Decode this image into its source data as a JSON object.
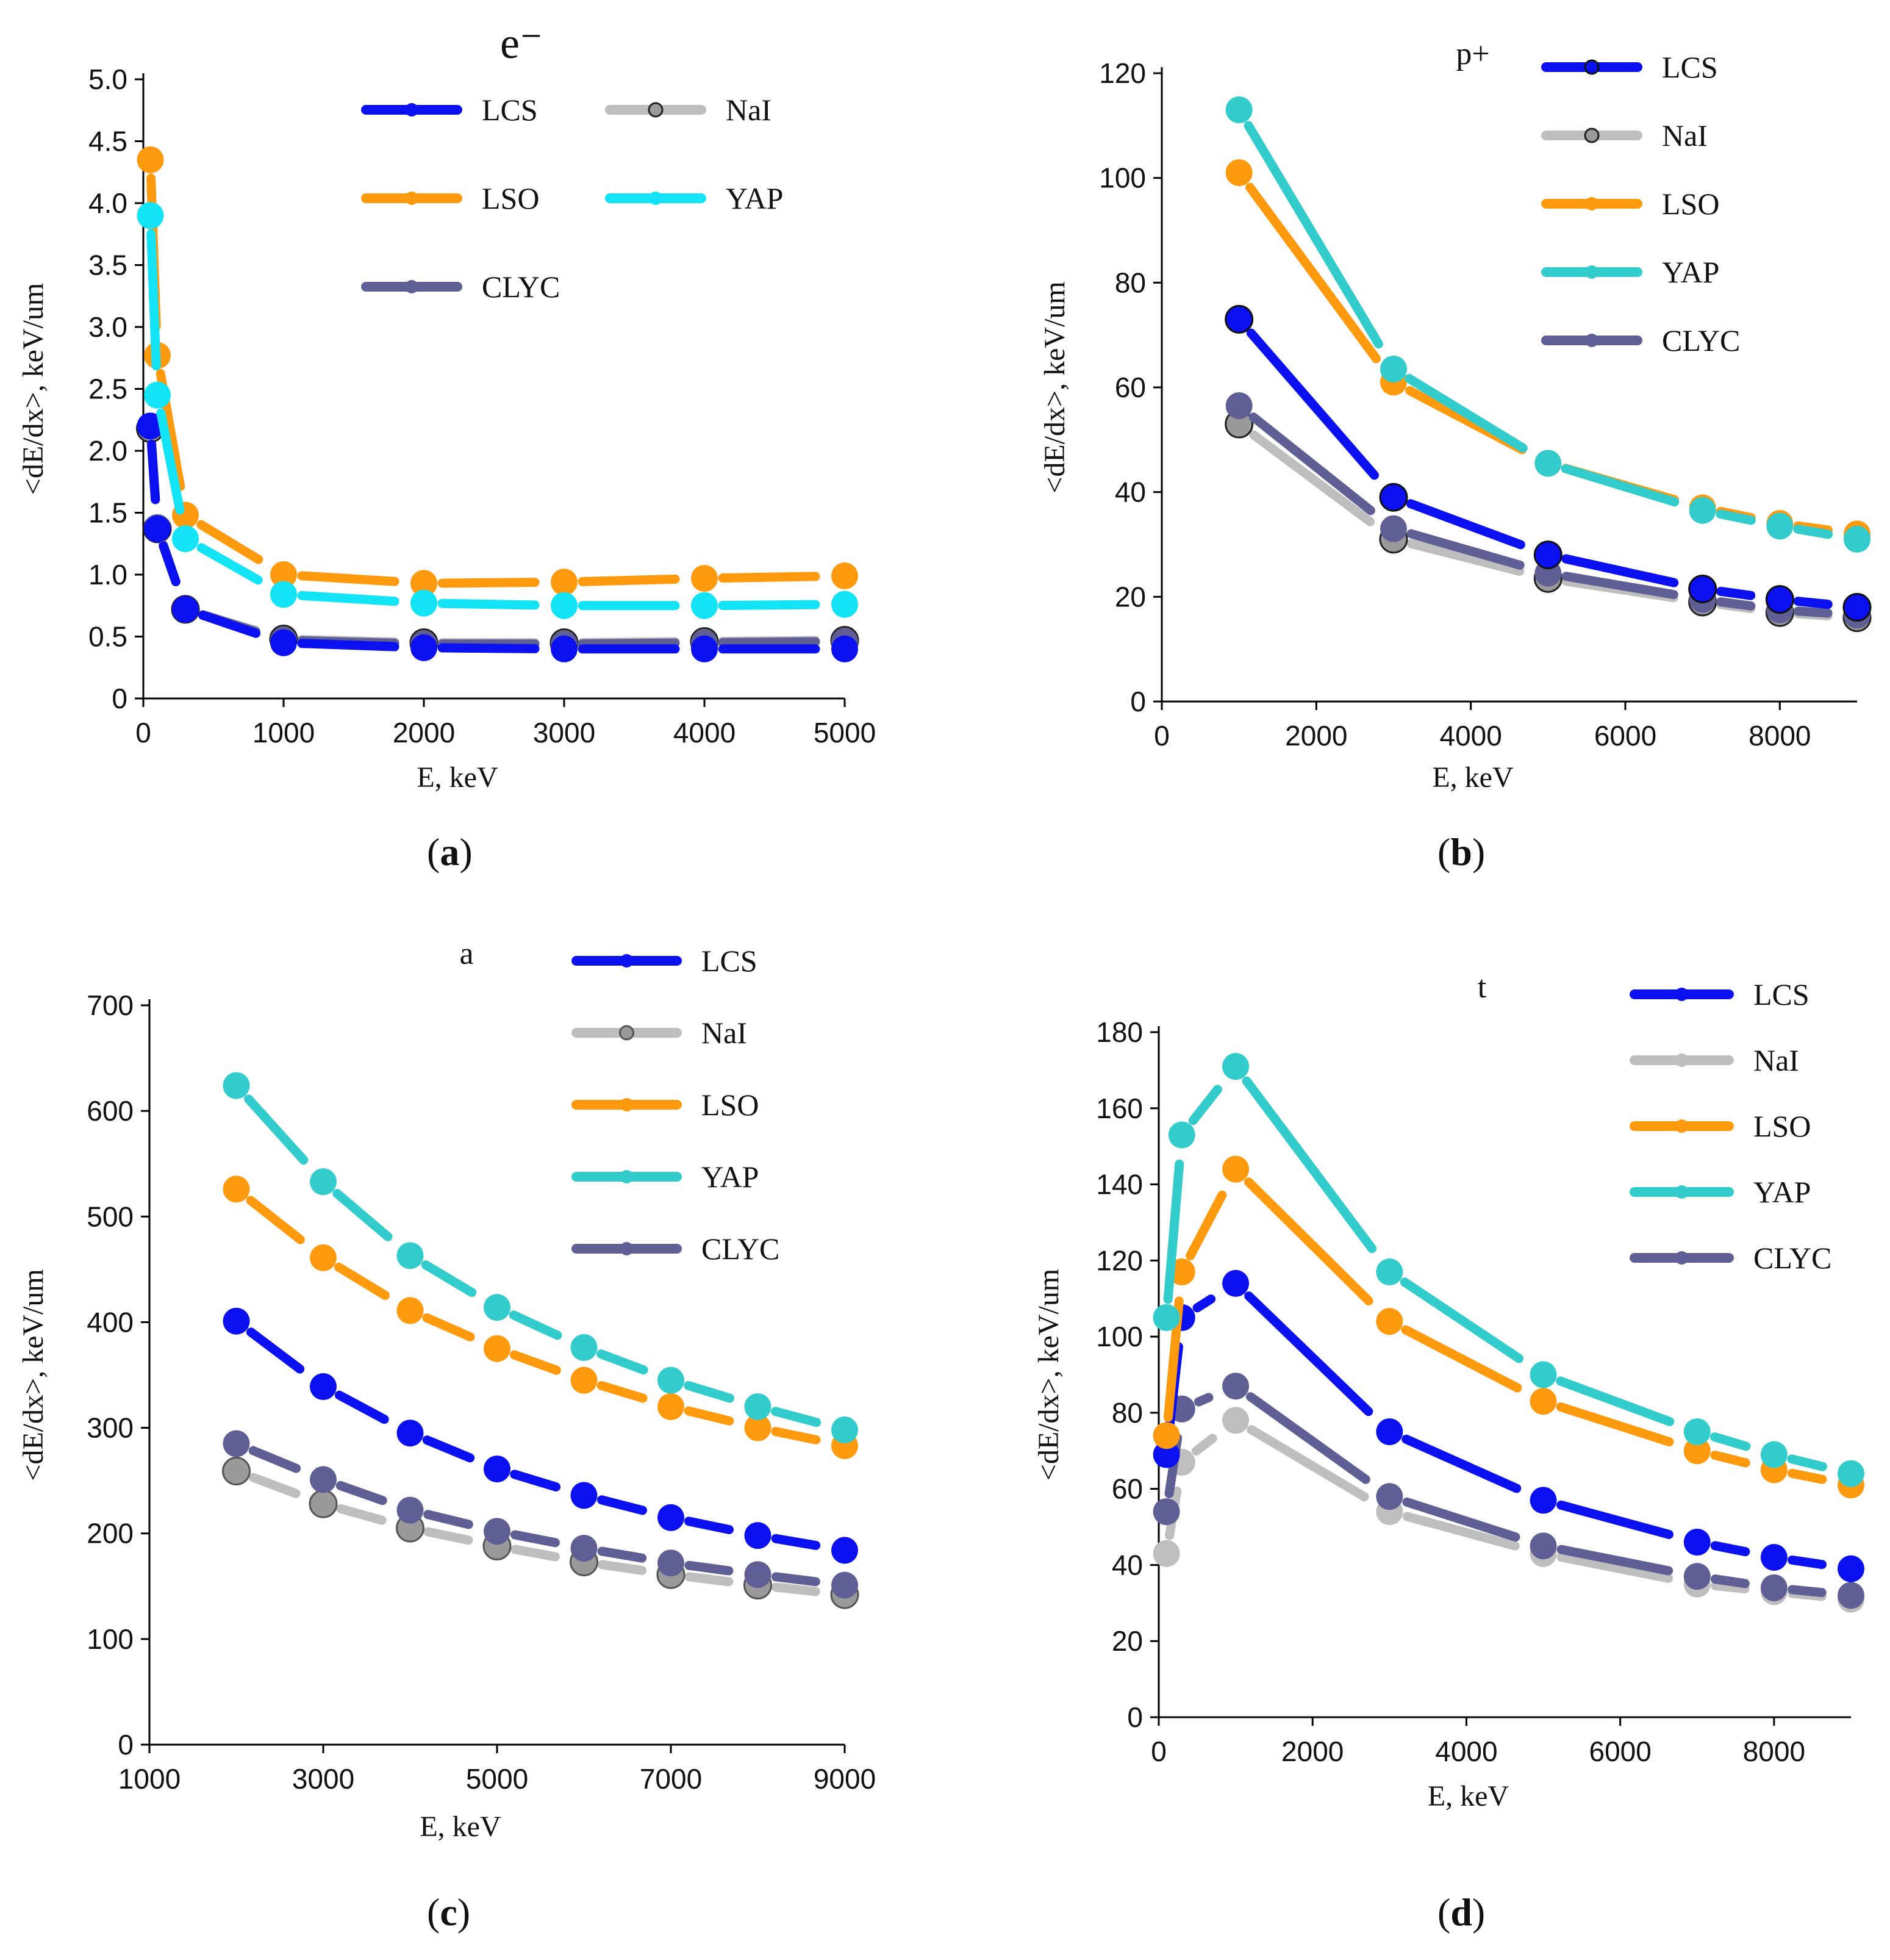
{
  "figure": {
    "panel_labels": [
      {
        "open": "(",
        "letter": "a",
        "close": ")"
      },
      {
        "open": "(",
        "letter": "b",
        "close": ")"
      },
      {
        "open": "(",
        "letter": "c",
        "close": ")"
      },
      {
        "open": "(",
        "letter": "d",
        "close": ")"
      }
    ]
  },
  "colors": {
    "LCS": "#0a10f0",
    "NaI": "#bebebe",
    "LSO": "#ff9a0f",
    "YAP_a": "#12e3f5",
    "YAP": "#33cccc",
    "CLYC": "#5f5f96"
  },
  "chart_data": [
    {
      "type": "line",
      "title": "e⁻",
      "xlabel": "E, keV",
      "ylabel": "<dE/dx>, keV/um",
      "xlim": [
        0,
        5000
      ],
      "ylim": [
        0,
        5.0
      ],
      "xticks": [
        "0",
        "1000",
        "2000",
        "3000",
        "4000",
        "5000"
      ],
      "yticks": [
        "0",
        "0.5",
        "1.0",
        "1.5",
        "2.0",
        "2.5",
        "3.0",
        "3.5",
        "4.0",
        "4.5",
        "5.0"
      ],
      "x": [
        50,
        100,
        300,
        1000,
        2000,
        3000,
        4000,
        5000
      ],
      "series": [
        {
          "name": "LCS",
          "values": [
            2.2,
            1.37,
            0.72,
            0.45,
            0.41,
            0.4,
            0.4,
            0.4
          ]
        },
        {
          "name": "NaI",
          "values": [
            2.18,
            1.37,
            0.72,
            0.48,
            0.45,
            0.45,
            0.46,
            0.47
          ]
        },
        {
          "name": "LSO",
          "values": [
            4.35,
            2.77,
            1.48,
            1.0,
            0.93,
            0.94,
            0.97,
            0.99
          ]
        },
        {
          "name": "YAP",
          "values": [
            3.9,
            2.45,
            1.29,
            0.84,
            0.77,
            0.75,
            0.75,
            0.76
          ]
        },
        {
          "name": "CLYC",
          "values": [
            2.2,
            1.38,
            0.72,
            0.47,
            0.44,
            0.44,
            0.45,
            0.46
          ]
        }
      ],
      "legend": [
        "LCS",
        "NaI",
        "LSO",
        "YAP",
        "CLYC"
      ]
    },
    {
      "type": "line",
      "title": "p+",
      "xlabel": "E, keV",
      "ylabel": "<dE/dx>, keV/um",
      "xlim": [
        0,
        9000
      ],
      "ylim": [
        0,
        120
      ],
      "xticks": [
        "0",
        "2000",
        "4000",
        "6000",
        "8000"
      ],
      "yticks": [
        "0",
        "20",
        "40",
        "60",
        "80",
        "100",
        "120"
      ],
      "x": [
        1000,
        3000,
        5000,
        7000,
        8000,
        9000
      ],
      "series": [
        {
          "name": "LCS",
          "values": [
            73,
            39,
            28,
            21.5,
            19.5,
            18
          ]
        },
        {
          "name": "NaI",
          "values": [
            53,
            31,
            23.5,
            19,
            17,
            16
          ]
        },
        {
          "name": "LSO",
          "values": [
            101,
            61,
            45.5,
            37,
            34,
            32
          ]
        },
        {
          "name": "YAP",
          "values": [
            113,
            63.5,
            45.5,
            36.5,
            33.5,
            31
          ]
        },
        {
          "name": "CLYC",
          "values": [
            56.5,
            33,
            24.5,
            19.5,
            17.5,
            16.5
          ]
        }
      ],
      "legend": [
        "LCS",
        "NaI",
        "LSO",
        "YAP",
        "CLYC"
      ]
    },
    {
      "type": "line",
      "title": "a",
      "xlabel": "E, keV",
      "ylabel": "<dE/dx>, keV/um",
      "xlim": [
        1000,
        9000
      ],
      "ylim": [
        0,
        700
      ],
      "xticks": [
        "1000",
        "3000",
        "5000",
        "7000",
        "9000"
      ],
      "yticks": [
        "0",
        "100",
        "200",
        "300",
        "400",
        "500",
        "600",
        "700"
      ],
      "x": [
        2000,
        3000,
        4000,
        5000,
        6000,
        7000,
        8000,
        9000
      ],
      "series": [
        {
          "name": "LCS",
          "values": [
            401,
            339,
            295,
            261,
            236,
            215,
            198,
            184
          ]
        },
        {
          "name": "NaI",
          "values": [
            259,
            228,
            205,
            188,
            173,
            161,
            151,
            142
          ]
        },
        {
          "name": "LSO",
          "values": [
            526,
            461,
            411,
            375,
            345,
            320,
            300,
            283
          ]
        },
        {
          "name": "YAP",
          "values": [
            624,
            533,
            463,
            414,
            376,
            345,
            320,
            298
          ]
        },
        {
          "name": "CLYC",
          "values": [
            285,
            251,
            222,
            202,
            186,
            172,
            161,
            151
          ]
        }
      ],
      "legend": [
        "LCS",
        "NaI",
        "LSO",
        "YAP",
        "CLYC"
      ]
    },
    {
      "type": "line",
      "title": "t",
      "xlabel": "E, keV",
      "ylabel": "<dE/dx>, keV/um",
      "xlim": [
        0,
        9000
      ],
      "ylim": [
        0,
        180
      ],
      "xticks": [
        "0",
        "2000",
        "4000",
        "6000",
        "8000"
      ],
      "yticks": [
        "0",
        "20",
        "40",
        "60",
        "80",
        "100",
        "120",
        "140",
        "160",
        "180"
      ],
      "x": [
        100,
        300,
        1000,
        3000,
        5000,
        7000,
        8000,
        9000
      ],
      "series": [
        {
          "name": "LCS",
          "values": [
            69,
            105,
            114,
            75,
            57,
            46,
            42,
            39
          ]
        },
        {
          "name": "NaI",
          "values": [
            43,
            67,
            78,
            54,
            43,
            35,
            33,
            31
          ]
        },
        {
          "name": "LSO",
          "values": [
            74,
            117,
            144,
            104,
            83,
            70,
            65,
            61
          ]
        },
        {
          "name": "YAP",
          "values": [
            105,
            153,
            171,
            117,
            90,
            75,
            69,
            64
          ]
        },
        {
          "name": "CLYC",
          "values": [
            54,
            81,
            87,
            58,
            45,
            37,
            34,
            32
          ]
        }
      ],
      "legend": [
        "LCS",
        "NaI",
        "LSO",
        "YAP",
        "CLYC"
      ]
    }
  ]
}
